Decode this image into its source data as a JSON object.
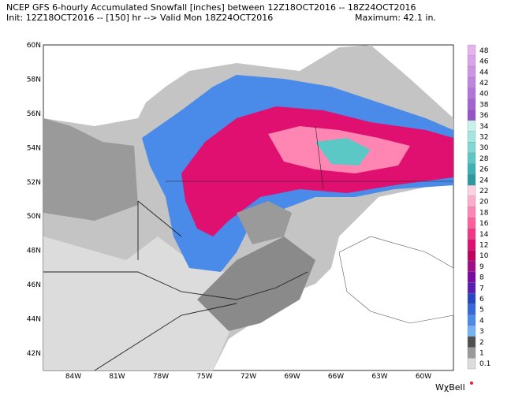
{
  "header": {
    "title": "NCEP GFS 6-hourly Accumulated Snowfall [inches] between 12Z18OCT2016 -- 18Z24OCT2016",
    "subtitle": "Init: 12Z18OCT2016 -- [150] hr --> Valid Mon 18Z24OCT2016",
    "maximum": "Maximum:  42.1 in."
  },
  "map": {
    "lat_labels": [
      "60N",
      "58N",
      "56N",
      "54N",
      "52N",
      "50N",
      "48N",
      "46N",
      "44N",
      "42N"
    ],
    "lon_labels": [
      "84W",
      "81W",
      "78W",
      "75W",
      "72W",
      "69W",
      "66W",
      "63W",
      "60W"
    ]
  },
  "colorbar": {
    "labels": [
      "48",
      "46",
      "44",
      "42",
      "40",
      "38",
      "36",
      "34",
      "32",
      "30",
      "28",
      "26",
      "24",
      "22",
      "20",
      "18",
      "16",
      "14",
      "12",
      "10",
      "9",
      "8",
      "7",
      "6",
      "5",
      "4",
      "3",
      "2",
      "1",
      "0.1"
    ],
    "colors": [
      "#e6b3f0",
      "#d9a3ec",
      "#cc93e6",
      "#bf83e0",
      "#b273da",
      "#a563d2",
      "#9653c8",
      "#c7f2ec",
      "#a4e6e0",
      "#80d8d4",
      "#5cc8c6",
      "#3cb2b4",
      "#2a9aa0",
      "#ffd0e2",
      "#ffacca",
      "#ff86b2",
      "#ff5e9a",
      "#f53586",
      "#e01070",
      "#c0005e",
      "#a00c8a",
      "#7c0aa4",
      "#5a1cb4",
      "#2846c4",
      "#3468dc",
      "#4a8ae8",
      "#74b4f4",
      "#505050",
      "#9a9a9a",
      "#dcdcdc"
    ]
  },
  "brand": "WχBell"
}
